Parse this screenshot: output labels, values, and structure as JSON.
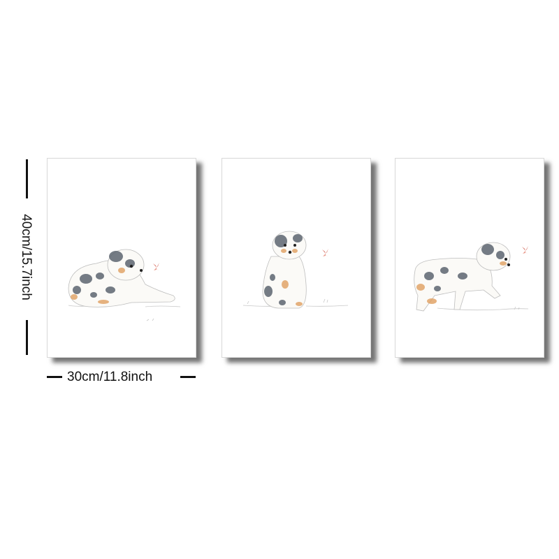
{
  "dimensions": {
    "height_label": "40cm/15.7inch",
    "width_label": "30cm/11.8inch"
  },
  "panels": [
    {
      "subject": "puppy-lying-with-butterfly"
    },
    {
      "subject": "puppy-sitting-with-butterfly"
    },
    {
      "subject": "puppy-walking-with-butterfly"
    }
  ],
  "colors": {
    "merle_gray": "#5d6670",
    "tan": "#e0a060",
    "butterfly": "#d9776a",
    "shadow": "#000000"
  }
}
